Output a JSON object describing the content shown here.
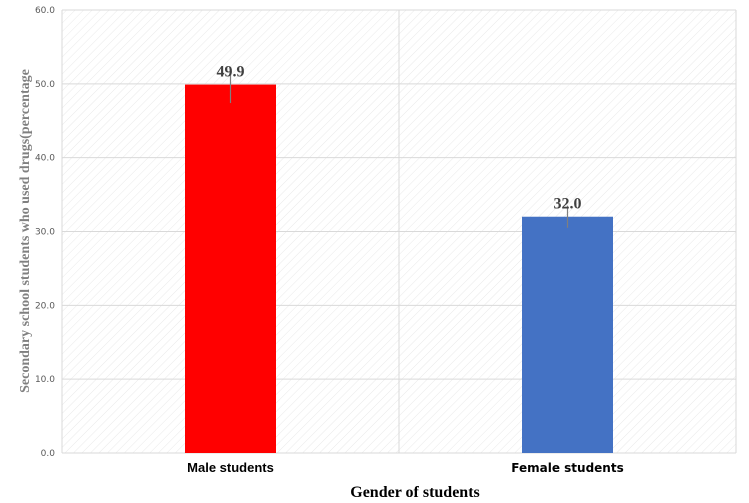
{
  "chart_data": {
    "type": "bar",
    "categories": [
      "Male students",
      "Female students"
    ],
    "values": [
      49.9,
      32.0
    ],
    "value_labels": [
      "49.9",
      "32.0"
    ],
    "error_bars": [
      [
        47.4,
        52.3
      ],
      [
        30.5,
        33.5
      ]
    ],
    "bar_colors": [
      "#ff0000",
      "#4472c4"
    ],
    "xlabel": "Gender of students",
    "ylabel": "Secondary school students who used drugs(percentage",
    "ylim": [
      0,
      60
    ],
    "yticks": [
      "0.0",
      "10.0",
      "20.0",
      "30.0",
      "40.0",
      "50.0",
      "60.0"
    ],
    "grid": true,
    "legend": "none"
  }
}
